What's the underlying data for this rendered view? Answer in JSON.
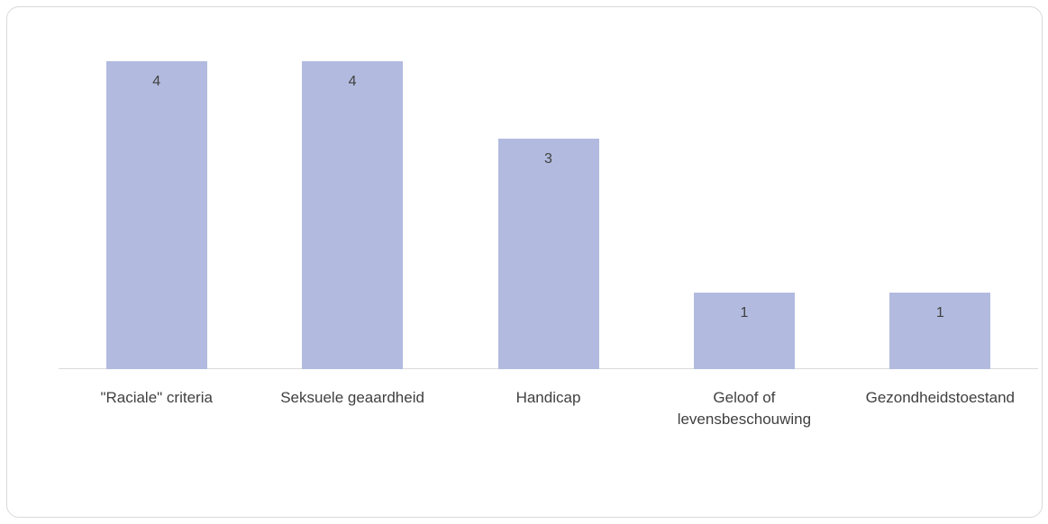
{
  "chart_data": {
    "type": "bar",
    "categories": [
      "\"Raciale\" criteria",
      "Seksuele geaardheid",
      "Handicap",
      "Geloof of levensbeschouwing",
      "Gezondheidstoestand"
    ],
    "values": [
      4,
      4,
      3,
      1,
      1
    ],
    "color": "#b2bbdf"
  }
}
